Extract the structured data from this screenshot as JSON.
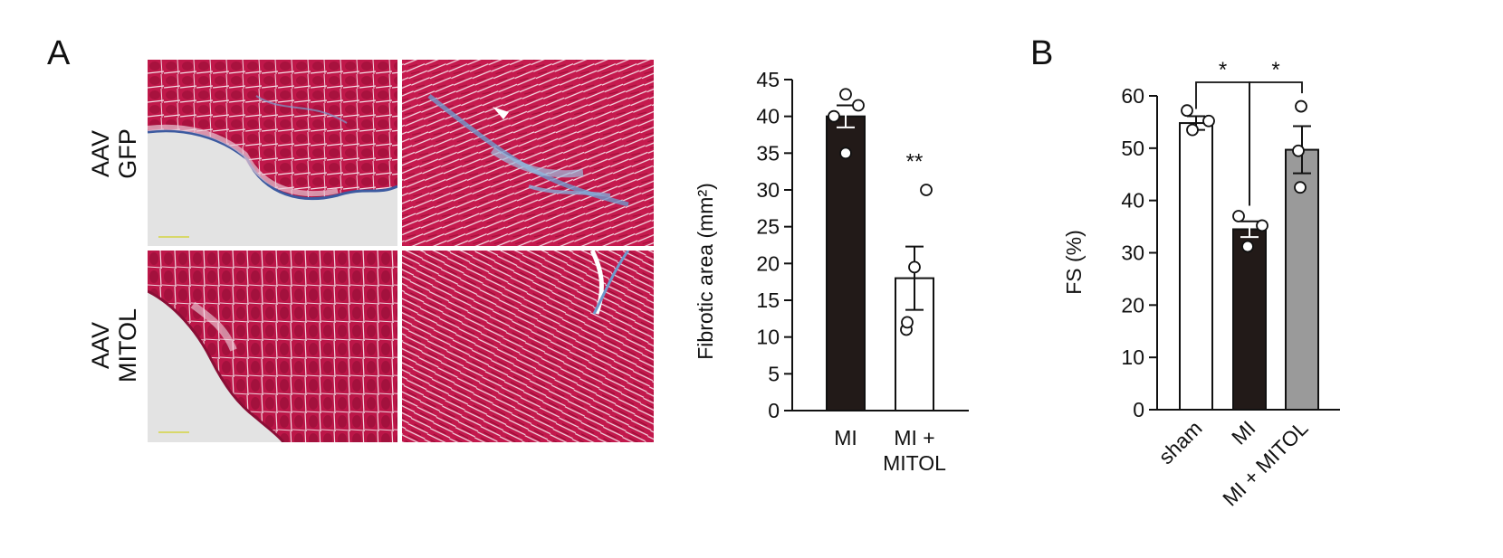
{
  "panel_a": {
    "label": "A",
    "rows": [
      {
        "line1": "AAV",
        "line2": "GFP"
      },
      {
        "line1": "AAV",
        "line2": "MITOL"
      }
    ]
  },
  "panel_b": {
    "label": "B"
  },
  "colors": {
    "tissue_red": "#c0184a",
    "tissue_dark": "#8a0e36",
    "collagen_blue": "#5a86c0",
    "background_gray": "#e3e3e3",
    "bar_black": "#221a18",
    "bar_white": "#ffffff",
    "bar_gray": "#9a9a9a"
  },
  "chart_data": [
    {
      "type": "bar",
      "ylabel": "Fibrotic area (mm²)",
      "ylim": [
        0,
        45
      ],
      "yticks": [
        "0",
        "5",
        "10",
        "15",
        "20",
        "25",
        "30",
        "35",
        "40",
        "45"
      ],
      "categories": [
        "MI",
        "MI + MITOL"
      ],
      "category_lines": [
        [
          "MI"
        ],
        [
          "MI +",
          "MITOL"
        ]
      ],
      "values": [
        40,
        18
      ],
      "errors": [
        1.5,
        4.3
      ],
      "fills": [
        "#221a18",
        "#ffffff"
      ],
      "points": [
        [
          35,
          40,
          41.5,
          43
        ],
        [
          11,
          12,
          19.5,
          30
        ]
      ],
      "significance": [
        "",
        "**"
      ]
    },
    {
      "type": "bar",
      "ylabel": "FS (%)",
      "ylim": [
        0,
        60
      ],
      "yticks": [
        "0",
        "10",
        "20",
        "30",
        "40",
        "50",
        "60"
      ],
      "categories": [
        "sham",
        "MI",
        "MI + MITOL"
      ],
      "values": [
        54.8,
        34.5,
        49.7
      ],
      "errors": [
        1.3,
        1.5,
        4.5
      ],
      "fills": [
        "#ffffff",
        "#221a18",
        "#9a9a9a"
      ],
      "points": [
        [
          53.5,
          55.2,
          57.2
        ],
        [
          31.2,
          35.2,
          37.0
        ],
        [
          42.5,
          49.5,
          58.0
        ]
      ],
      "comparisons": [
        {
          "from": "sham",
          "to": "MI",
          "label": "*"
        },
        {
          "from": "MI",
          "to": "MI + MITOL",
          "label": "*"
        }
      ]
    }
  ]
}
